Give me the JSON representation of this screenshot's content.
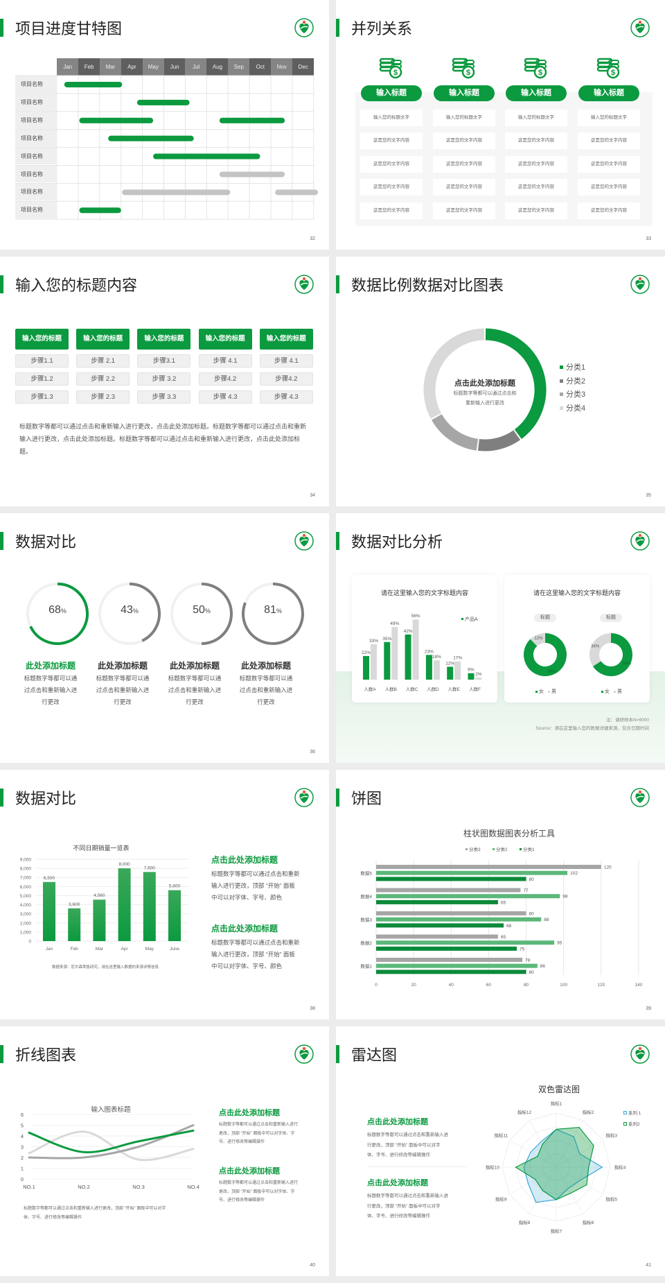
{
  "colors": {
    "green": "#0b9a3f",
    "dark_green": "#0b8a3a",
    "mid_green": "#5cb87a",
    "dark_gray": "#7f7f7f",
    "gray": "#a6a6a6",
    "light_gray": "#d9d9d9",
    "blue": "#3aa6d8"
  },
  "slides": [
    {
      "page": "32",
      "title": "项目进度甘特图"
    },
    {
      "page": "33",
      "title": "并列关系",
      "columns": [
        {
          "icon": "coins-dollar-icon",
          "heading": "输入标题",
          "cells": [
            "输入您的标题文字",
            "这是您的文字内容",
            "这是您的文字内容",
            "这是您的文字内容",
            "这是您的文字内容"
          ]
        },
        {
          "icon": "coins-dollar-icon",
          "heading": "输入标题",
          "cells": [
            "输入您的标题文字",
            "这是您的文字内容",
            "这是您的文字内容",
            "这是您的文字内容",
            "这是您的文字内容"
          ]
        },
        {
          "icon": "coins-dollar-icon",
          "heading": "输入标题",
          "cells": [
            "输入您的标题文字",
            "这是您的文字内容",
            "这是您的文字内容",
            "这是您的文字内容",
            "这是您的文字内容"
          ]
        },
        {
          "icon": "coins-dollar-icon",
          "heading": "输入标题",
          "cells": [
            "输入您的标题文字",
            "这是您的文字内容",
            "这是您的文字内容",
            "这是您的文字内容",
            "这是您的文字内容"
          ]
        }
      ]
    },
    {
      "page": "34",
      "title": "输入您的标题内容",
      "columns": [
        {
          "heading": "输入您的标题",
          "steps": [
            "步骤1.1",
            "步骤1.2",
            "步骤1.3"
          ]
        },
        {
          "heading": "输入您的标题",
          "steps": [
            "步骤 2.1",
            "步骤 2.2",
            "步骤 2.3"
          ]
        },
        {
          "heading": "输入您的标题",
          "steps": [
            "步骤3.1",
            "步骤 3.2",
            "步骤 3.3"
          ]
        },
        {
          "heading": "输入您的标题",
          "steps": [
            "步骤 4.1",
            "步骤4.2",
            "步骤 4.3"
          ]
        },
        {
          "heading": "输入您的标题",
          "steps": [
            "步骤 4.1",
            "步骤4.2",
            "步骤 4.3"
          ]
        }
      ],
      "paragraph": "标题数字等都可以通过点击和重新输入进行更改，点击此处添加标题。标题数字等都可以通过点击和重新输入进行更改，点击此处添加标题。标题数字等都可以通过点击和重新输入进行更改，点击此处添加标题。"
    },
    {
      "page": "35",
      "title": "数据比例数据对比图表",
      "center_title": "点击此处添加标题",
      "center_text": [
        "标题数字等都可以通过点击和",
        "重新输入进行更改"
      ]
    },
    {
      "page": "36",
      "title": "数据对比",
      "items": [
        {
          "heading": "此处添加标题",
          "text": [
            "标题数字等都可以通",
            "过点击和重新输入进",
            "行更改"
          ]
        },
        {
          "heading": "此处添加标题",
          "text": [
            "标题数字等都可以通",
            "过点击和重新输入进",
            "行更改"
          ]
        },
        {
          "heading": "此处添加标题",
          "text": [
            "标题数字等都可以通",
            "过点击和重新输入进",
            "行更改"
          ]
        },
        {
          "heading": "此处添加标题",
          "text": [
            "标题数字等都可以通",
            "过点击和重新输入进",
            "行更改"
          ]
        }
      ]
    },
    {
      "page": "37",
      "title": "数据对比分析",
      "card_titles": [
        "请在这里输入您的文字标题内容",
        "请在这里输入您的文字标题内容"
      ],
      "note": "注：调研样本N=9000",
      "source": "Source：请在这里输入您的数据详细来源，包含日期时间"
    },
    {
      "page": "38",
      "title": "数据对比",
      "source": "数据来源：尼尔森零售研究，请在这里输入数据的来源详情信息",
      "blocks": [
        {
          "heading": "点击此处添加标题",
          "text": [
            "标题数字等都可以通过点击和重新",
            "输入进行更改，顶部 “开始” 面板",
            "中可以对字体、字号、颜色"
          ]
        },
        {
          "heading": "点击此处添加标题",
          "text": [
            "标题数字等都可以通过点击和重新",
            "输入进行更改，顶部 “开始” 面板",
            "中可以对字体、字号、颜色"
          ]
        }
      ]
    },
    {
      "page": "39",
      "title": "饼图"
    },
    {
      "page": "40",
      "title": "折线图表",
      "below_text": [
        "标题数字等都可以通过点击和重新输入进行更改，顶部 “开始” 面板中可以对字",
        "体、字号、进行修改等编辑操作"
      ],
      "blocks": [
        {
          "heading": "点击此处添加标题",
          "text": [
            "标题数字等都可以通过点击和重新输入进行",
            "更改，顶部 “开始” 面板中可以对字体、字",
            "号、进行修改等编辑操作"
          ]
        },
        {
          "heading": "点击此处添加标题",
          "text": [
            "标题数字等都可以通过点击和重新输入进行",
            "更改，顶部 “开始” 面板中可以对字体、字",
            "号、进行修改等编辑操作"
          ]
        }
      ]
    },
    {
      "page": "41",
      "title": "雷达图",
      "blocks": [
        {
          "heading": "点击此处添加标题",
          "text": [
            "标题数字等都可以通过点击和重新输入进",
            "行更改，顶部 “开始” 面板中可以对字",
            "体、字号、进行修改等编辑操作"
          ]
        },
        {
          "heading": "点击此处添加标题",
          "text": [
            "标题数字等都可以通过点击和重新输入进",
            "行更改，顶部 “开始” 面板中可以对字",
            "体、字号、进行修改等编辑操作"
          ]
        }
      ]
    }
  ],
  "chart_data": [
    {
      "type": "gantt",
      "months": [
        "Jan",
        "Feb",
        "Mar",
        "Apr",
        "May",
        "Jun",
        "Jul",
        "Aug",
        "Sep",
        "Oct",
        "Nov",
        "Dec"
      ],
      "rows": [
        {
          "label": "项目名称",
          "bars": [
            {
              "start": 0.35,
              "end": 3.05,
              "color": "green"
            }
          ]
        },
        {
          "label": "项目名称",
          "bars": [
            {
              "start": 3.75,
              "end": 6.2,
              "color": "green"
            }
          ]
        },
        {
          "label": "项目名称",
          "bars": [
            {
              "start": 1.05,
              "end": 4.5,
              "color": "green"
            },
            {
              "start": 7.6,
              "end": 10.65,
              "color": "green"
            }
          ]
        },
        {
          "label": "项目名称",
          "bars": [
            {
              "start": 2.4,
              "end": 6.4,
              "color": "green"
            }
          ]
        },
        {
          "label": "项目名称",
          "bars": [
            {
              "start": 4.5,
              "end": 9.5,
              "color": "green"
            }
          ]
        },
        {
          "label": "项目名称",
          "bars": [
            {
              "start": 7.6,
              "end": 10.65,
              "color": "gray"
            }
          ]
        },
        {
          "label": "项目名称",
          "bars": [
            {
              "start": 3.05,
              "end": 8.1,
              "color": "gray"
            },
            {
              "start": 10.2,
              "end": 12.2,
              "color": "gray"
            }
          ]
        },
        {
          "label": "项目名称",
          "bars": [
            {
              "start": 1.05,
              "end": 3.0,
              "color": "green"
            }
          ]
        }
      ]
    },
    {
      "type": "pie",
      "donut": true,
      "categories": [
        "分类1",
        "分类2",
        "分类3",
        "分类4"
      ],
      "values": [
        40,
        12,
        15,
        33
      ],
      "colors": [
        "#0b9a3f",
        "#7f7f7f",
        "#a6a6a6",
        "#d9d9d9"
      ],
      "legend": "right"
    },
    {
      "type": "progress-rings",
      "values": [
        68,
        43,
        50,
        81
      ],
      "labels": [
        "68",
        "43",
        "50",
        "81"
      ],
      "unit": "%",
      "colors": [
        "#0b9a3f",
        "#7f7f7f",
        "#7f7f7f",
        "#7f7f7f"
      ]
    },
    {
      "type": "bar",
      "categories": [
        "人群A",
        "人群B",
        "人群C",
        "人群D",
        "人群E",
        "人群F"
      ],
      "series": [
        {
          "name": "产品A",
          "values": [
            22,
            35,
            42,
            23,
            12,
            6
          ],
          "color": "#0b9a3f"
        },
        {
          "values": [
            33,
            49,
            56,
            18,
            17,
            2
          ],
          "color": "#d9d9d9"
        }
      ],
      "data_labels": true,
      "unit": "%",
      "legend": "top-right"
    },
    {
      "type": "pie",
      "donut": true,
      "charts": [
        {
          "label": "标题",
          "categories": [
            "女",
            "男"
          ],
          "values": [
            88,
            12
          ],
          "value_labels": [
            "88%",
            "12%"
          ]
        },
        {
          "label": "标题",
          "categories": [
            "女",
            "男"
          ],
          "values": [
            66,
            34
          ],
          "value_labels": [
            "66%",
            "34%"
          ]
        }
      ],
      "colors": [
        "#0b9a3f",
        "#d9d9d9"
      ],
      "legend": "bottom"
    },
    {
      "type": "bar",
      "title": "不同日期销量一览表",
      "categories": [
        "Jan",
        "Feb",
        "Mar",
        "Apr",
        "May",
        "June"
      ],
      "values": [
        6500,
        3600,
        4560,
        8000,
        7600,
        5600
      ],
      "value_labels": [
        "6,500",
        "3,600",
        "4,560",
        "8,000",
        "7,600",
        "5,600"
      ],
      "ylim": [
        0,
        9000
      ],
      "yticks": [
        "0",
        "1,000",
        "2,000",
        "3,000",
        "4,000",
        "5,000",
        "6,000",
        "7,000",
        "8,000",
        "9,000"
      ],
      "grid": true
    },
    {
      "type": "bar",
      "orientation": "horizontal",
      "title": "柱状图数据图表分析工具",
      "categories": [
        "数据1",
        "数据2",
        "数据3",
        "数据4",
        "数据5"
      ],
      "series": [
        {
          "name": "分类3",
          "values": [
            78,
            65,
            80,
            77,
            120
          ],
          "color": "#a6a6a6"
        },
        {
          "name": "分类2",
          "values": [
            86,
            95,
            88,
            98,
            102
          ],
          "color": "#5cb87a"
        },
        {
          "name": "分类1",
          "values": [
            80,
            75,
            68,
            65,
            80
          ],
          "color": "#0b8a3a"
        }
      ],
      "xlim": [
        0,
        140
      ],
      "xticks": [
        "0",
        "20",
        "40",
        "60",
        "80",
        "100",
        "120",
        "140"
      ],
      "grid": true,
      "legend": "top"
    },
    {
      "type": "line",
      "smooth": true,
      "title": "输入图表标题",
      "categories": [
        "NO.1",
        "NO.2",
        "NO.3",
        "NO.4"
      ],
      "series": [
        {
          "values": [
            4.3,
            2.5,
            3.5,
            4.5
          ],
          "color": "#0b9a3f"
        },
        {
          "values": [
            2.0,
            2.0,
            3.0,
            5.0
          ],
          "color": "#a6a6a6"
        },
        {
          "values": [
            2.4,
            4.4,
            1.8,
            2.8
          ],
          "color": "#d9d9d9"
        }
      ],
      "ylim": [
        0,
        6
      ],
      "yticks": [
        "0",
        "1",
        "2",
        "3",
        "4",
        "5",
        "6"
      ],
      "grid": true
    },
    {
      "type": "radar",
      "title": "双色雷达图",
      "categories": [
        "指标1",
        "指标2",
        "指标3",
        "指标4",
        "指标5",
        "指标6",
        "指标7",
        "指标8",
        "指标9",
        "指标10",
        "指标11",
        "指标12"
      ],
      "series": [
        {
          "name": "系列 1",
          "values": [
            7,
            6.5,
            5,
            8.5,
            5,
            4.5,
            6,
            7.5,
            6,
            6,
            5.5,
            5.5
          ],
          "color": "#3aa6d8"
        },
        {
          "name": "系列2",
          "values": [
            7,
            8.5,
            8,
            6,
            6.5,
            5.5,
            6,
            5,
            4.5,
            7.5,
            4,
            5
          ],
          "color": "#0b9a3f"
        }
      ],
      "rmax": 10,
      "legend": "top-right"
    }
  ]
}
